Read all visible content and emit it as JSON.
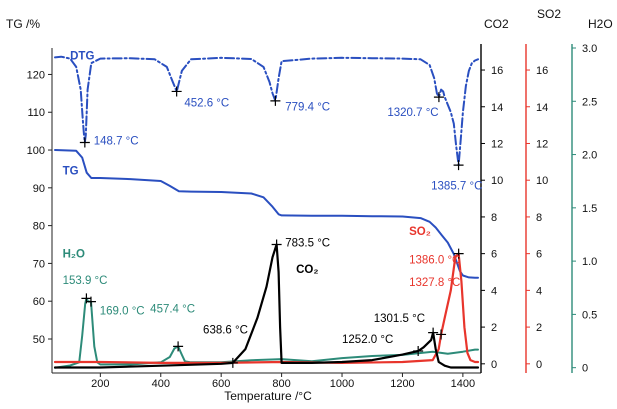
{
  "colors": {
    "dtg": "#2a4fc0",
    "tg": "#2a4fc0",
    "co2": "#000000",
    "so2": "#e8352c",
    "h2o": "#2d8b79"
  },
  "chart_data": {
    "type": "line",
    "xlabel": "Temperature /°C",
    "xlim": [
      40,
      1460
    ],
    "x_ticks": [
      "200",
      "400",
      "600",
      "800",
      "1000",
      "1200",
      "1400"
    ],
    "axes": {
      "tg": {
        "label": "TG /%",
        "ylim": [
          41,
          127
        ],
        "ticks": [
          "50",
          "60",
          "70",
          "80",
          "90",
          "100",
          "110",
          "120"
        ]
      },
      "co2": {
        "label": "CO2",
        "ylim": [
          -0.5,
          17.2
        ],
        "ticks": [
          "0",
          "2",
          "4",
          "6",
          "8",
          "10",
          "12",
          "14",
          "16"
        ]
      },
      "so2": {
        "label": "SO2",
        "ylim": [
          -0.5,
          17.2
        ],
        "ticks": [
          "0",
          "2",
          "4",
          "6",
          "8",
          "10",
          "12",
          "14",
          "16"
        ]
      },
      "h2o": {
        "label": "H2O",
        "ylim": [
          -0.05,
          3.0
        ],
        "ticks": [
          "0",
          "0.5",
          "1.0",
          "1.5",
          "2.0",
          "2.5",
          "3.0"
        ]
      }
    },
    "series": [
      {
        "name": "DTG",
        "axis": "tg",
        "style": "dashdot",
        "x": [
          50,
          70,
          100,
          120,
          135,
          142,
          146,
          148.7,
          152,
          158,
          170,
          200,
          300,
          380,
          420,
          440,
          452.6,
          470,
          500,
          600,
          700,
          740,
          760,
          770,
          779.4,
          790,
          800,
          900,
          1000,
          1100,
          1200,
          1260,
          1290,
          1305,
          1314,
          1320.7,
          1328,
          1335,
          1340,
          1350,
          1360,
          1370,
          1378,
          1385.7,
          1393,
          1400,
          1410,
          1420,
          1430,
          1440,
          1450
        ],
        "y": [
          124.5,
          124.7,
          124.2,
          122,
          116,
          108,
          104,
          102,
          104,
          116,
          123,
          124.2,
          124.3,
          124.0,
          122,
          118,
          115.5,
          121,
          124.0,
          124.4,
          124.1,
          122,
          118,
          115,
          113,
          119,
          123.5,
          124.2,
          124.4,
          124.3,
          124.2,
          124.0,
          122.5,
          119,
          115,
          114,
          116,
          115.5,
          114,
          112,
          110,
          107,
          101,
          96,
          103,
          110,
          117,
          121,
          123,
          123.7,
          124.0
        ]
      },
      {
        "name": "TG",
        "axis": "tg",
        "style": "solid",
        "x": [
          50,
          120,
          140,
          155,
          170,
          200,
          300,
          400,
          430,
          460,
          500,
          600,
          700,
          740,
          770,
          790,
          800,
          900,
          1000,
          1100,
          1200,
          1260,
          1290,
          1310,
          1330,
          1350,
          1370,
          1390,
          1400,
          1420,
          1440,
          1450
        ],
        "y": [
          100.0,
          99.8,
          98,
          94,
          92.6,
          92.6,
          92.3,
          91.8,
          90.5,
          89.1,
          89.0,
          88.9,
          88.5,
          87.5,
          85.0,
          83.0,
          82.7,
          82.6,
          82.6,
          82.5,
          82.4,
          82.0,
          81.0,
          79.5,
          77.5,
          75.5,
          72.5,
          68.0,
          66.8,
          66.3,
          66.2,
          66.2
        ]
      },
      {
        "name": "H2O",
        "axis": "h2o",
        "style": "solid",
        "x": [
          50,
          100,
          130,
          140,
          150,
          153.9,
          160,
          169.0,
          180,
          190,
          200,
          300,
          400,
          430,
          445,
          457.4,
          470,
          480,
          500,
          600,
          700,
          800,
          900,
          1000,
          1100,
          1200,
          1300,
          1350,
          1400,
          1440,
          1450
        ],
        "y": [
          0.0,
          0.02,
          0.05,
          0.3,
          0.6,
          0.65,
          0.62,
          0.62,
          0.2,
          0.05,
          0.03,
          0.03,
          0.05,
          0.1,
          0.18,
          0.2,
          0.12,
          0.06,
          0.05,
          0.05,
          0.07,
          0.08,
          0.06,
          0.09,
          0.11,
          0.12,
          0.15,
          0.13,
          0.15,
          0.17,
          0.17
        ]
      },
      {
        "name": "SO2",
        "axis": "so2",
        "style": "solid",
        "x": [
          50,
          200,
          400,
          600,
          800,
          1000,
          1200,
          1300,
          1320,
          1327.8,
          1340,
          1360,
          1375,
          1386.0,
          1395,
          1405,
          1415,
          1425,
          1440,
          1450
        ],
        "y": [
          0.1,
          0.1,
          0.05,
          0.05,
          0.1,
          0.05,
          0.1,
          0.2,
          0.8,
          1.6,
          2.5,
          4.0,
          5.8,
          6.0,
          4.5,
          2.0,
          0.6,
          0.2,
          0.1,
          0.1
        ]
      },
      {
        "name": "CO2",
        "axis": "co2",
        "style": "solid",
        "x": [
          50,
          200,
          400,
          600,
          638.6,
          680,
          720,
          750,
          770,
          783.5,
          790,
          795,
          800,
          900,
          1000,
          1100,
          1200,
          1252.0,
          1270,
          1295,
          1301.5,
          1310,
          1320,
          1340,
          1360,
          1400,
          1450
        ],
        "y": [
          -0.2,
          -0.2,
          -0.1,
          0.0,
          0.05,
          0.8,
          2.5,
          4.2,
          5.8,
          6.5,
          5.0,
          2.0,
          0.05,
          0.05,
          0.1,
          0.2,
          0.5,
          0.7,
          0.9,
          1.3,
          1.7,
          0.8,
          0.1,
          -0.1,
          -0.2,
          -0.2,
          -0.2
        ]
      }
    ],
    "series_labels": [
      {
        "series": "DTG",
        "text": "DTG",
        "x": 100,
        "y": 124.0,
        "color": "dtg",
        "bold": true
      },
      {
        "series": "TG",
        "text": "TG",
        "x": 75,
        "y": 93.5,
        "color": "tg",
        "bold": true
      },
      {
        "series": "H2O",
        "text": "H₂O",
        "x": 75,
        "y": 71.5,
        "color": "h2o",
        "bold": true
      },
      {
        "series": "CO2",
        "text": "CO₂",
        "x": 848,
        "y": 67.5,
        "color": "co2",
        "bold": true
      },
      {
        "series": "SO2",
        "text": "SO₂",
        "x": 1222,
        "y": 77.5,
        "color": "so2",
        "bold": true
      }
    ],
    "annotations": [
      {
        "text": "148.7 °C",
        "x": 178,
        "y": 101.5,
        "color": "dtg"
      },
      {
        "text": "452.6 °C",
        "x": 478,
        "y": 111.5,
        "color": "dtg"
      },
      {
        "text": "779.4 °C",
        "x": 812,
        "y": 110.5,
        "color": "dtg"
      },
      {
        "text": "1320.7 °C",
        "x": 1150,
        "y": 109.0,
        "color": "dtg"
      },
      {
        "text": "1385.7 °C",
        "x": 1295,
        "y": 89.5,
        "color": "dtg"
      },
      {
        "text": "153.9 °C",
        "x": 75,
        "y": 64.5,
        "color": "h2o"
      },
      {
        "text": "169.0 °C",
        "x": 198,
        "y": 56.5,
        "color": "h2o"
      },
      {
        "text": "457.4 °C",
        "x": 365,
        "y": 57.0,
        "color": "h2o"
      },
      {
        "text": "783.5 °C",
        "x": 812,
        "y": 74.5,
        "color": "co2"
      },
      {
        "text": "638.6 °C",
        "x": 540,
        "y": 51.5,
        "color": "co2"
      },
      {
        "text": "1252.0 °C",
        "x": 1000,
        "y": 49.0,
        "color": "co2"
      },
      {
        "text": "1301.5 °C",
        "x": 1105,
        "y": 54.5,
        "color": "co2"
      },
      {
        "text": "1386.0 °C",
        "x": 1222,
        "y": 70.0,
        "color": "so2"
      },
      {
        "text": "1327.8 °C",
        "x": 1222,
        "y": 64.0,
        "color": "so2"
      }
    ],
    "markers": [
      {
        "series": "DTG",
        "x": 148.7
      },
      {
        "series": "DTG",
        "x": 452.6
      },
      {
        "series": "DTG",
        "x": 779.4
      },
      {
        "series": "DTG",
        "x": 1320.7
      },
      {
        "series": "DTG",
        "x": 1385.7
      },
      {
        "series": "H2O",
        "x": 153.9
      },
      {
        "series": "H2O",
        "x": 169.0
      },
      {
        "series": "H2O",
        "x": 457.4
      },
      {
        "series": "CO2",
        "x": 638.6
      },
      {
        "series": "CO2",
        "x": 783.5
      },
      {
        "series": "CO2",
        "x": 1252.0
      },
      {
        "series": "CO2",
        "x": 1301.5
      },
      {
        "series": "SO2",
        "x": 1327.8
      },
      {
        "series": "SO2",
        "x": 1386.0
      }
    ],
    "grid": false,
    "legend": "none"
  }
}
